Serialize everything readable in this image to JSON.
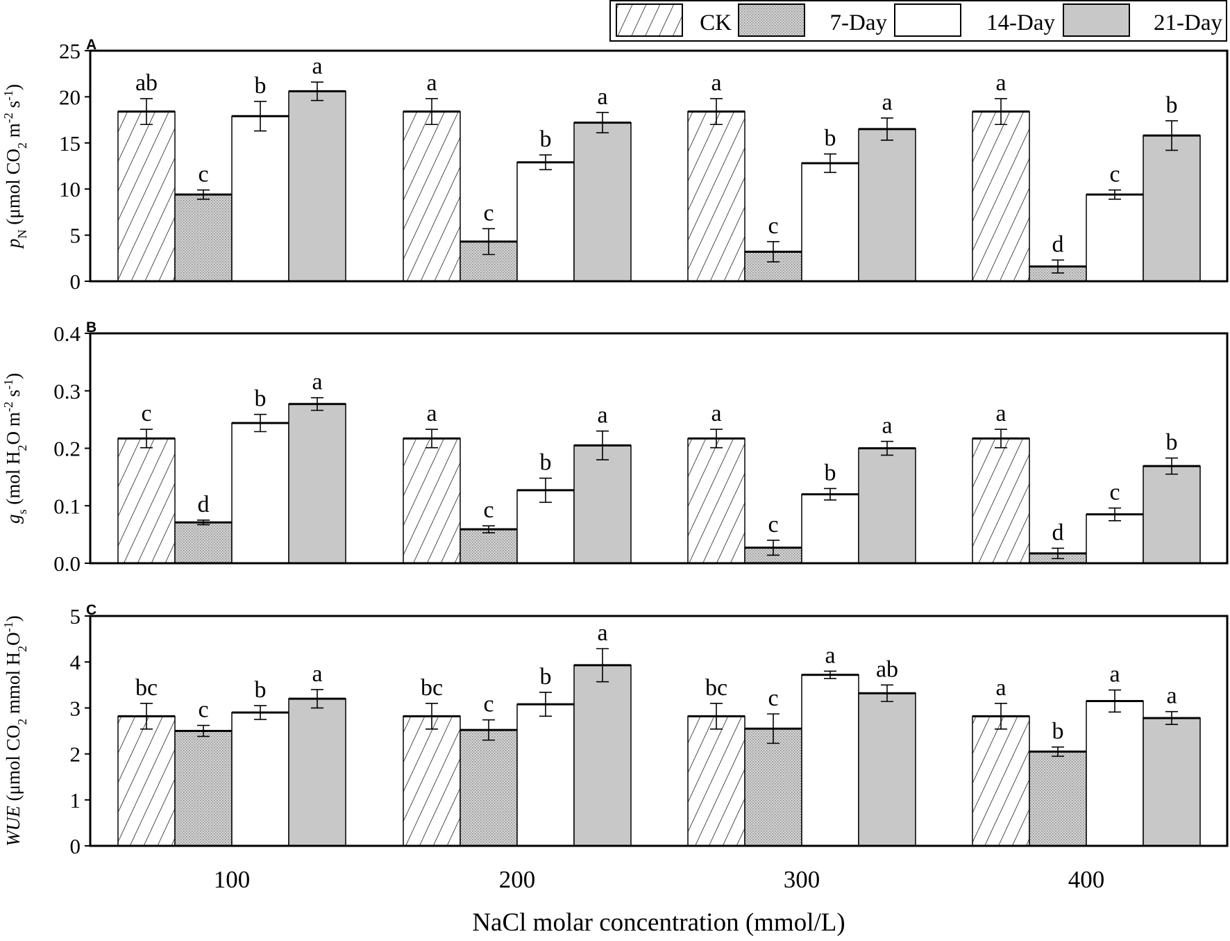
{
  "chart_data": {
    "type": "bar",
    "xlabel": "NaCl molar concentration (mmol/L)",
    "categories": [
      "100",
      "200",
      "300",
      "400"
    ],
    "legend": {
      "placement": "top-right",
      "entries": [
        {
          "name": "CK",
          "fill": "hatch"
        },
        {
          "name": "7-Day",
          "fill": "dots"
        },
        {
          "name": "14-Day",
          "fill": "#ffffff"
        },
        {
          "name": "21-Day",
          "fill": "#c8c8c8"
        }
      ]
    },
    "panels": [
      {
        "label": "A",
        "ylabel": [
          {
            "t": "p",
            "i": true
          },
          {
            "t": "N",
            "sub": true
          },
          {
            "t": " (μmol CO"
          },
          {
            "t": "2",
            "sub": true
          },
          {
            "t": " m"
          },
          {
            "t": "-2",
            "sup": true
          },
          {
            "t": " s"
          },
          {
            "t": "-1",
            "sup": true
          },
          {
            "t": ")"
          }
        ],
        "ylim": [
          0,
          25
        ],
        "yticks": [
          "0",
          "5",
          "10",
          "15",
          "20",
          "25"
        ],
        "series": [
          {
            "name": "CK",
            "values": [
              18.4,
              18.4,
              18.4,
              18.4
            ],
            "errors": [
              1.4,
              1.4,
              1.4,
              1.4
            ],
            "letters": [
              "ab",
              "a",
              "a",
              "a"
            ]
          },
          {
            "name": "7-Day",
            "values": [
              9.4,
              4.3,
              3.2,
              1.6
            ],
            "errors": [
              0.5,
              1.4,
              1.1,
              0.7
            ],
            "letters": [
              "c",
              "c",
              "c",
              "d"
            ]
          },
          {
            "name": "14-Day",
            "values": [
              17.9,
              12.9,
              12.8,
              9.4
            ],
            "errors": [
              1.6,
              0.8,
              1.0,
              0.5
            ],
            "letters": [
              "b",
              "b",
              "b",
              "c"
            ]
          },
          {
            "name": "21-Day",
            "values": [
              20.6,
              17.2,
              16.5,
              15.8
            ],
            "errors": [
              1.0,
              1.1,
              1.2,
              1.6
            ],
            "letters": [
              "a",
              "a",
              "a",
              "b"
            ]
          }
        ]
      },
      {
        "label": "B",
        "ylabel": [
          {
            "t": "g",
            "i": true
          },
          {
            "t": "s",
            "sub": true
          },
          {
            "t": " (mol H"
          },
          {
            "t": "2",
            "sub": true
          },
          {
            "t": "O m"
          },
          {
            "t": "-2",
            "sup": true
          },
          {
            "t": " s"
          },
          {
            "t": "-1",
            "sup": true
          },
          {
            "t": ")"
          }
        ],
        "ylim": [
          0,
          0.4
        ],
        "yticks": [
          "0.0",
          "0.1",
          "0.2",
          "0.3",
          "0.4"
        ],
        "series": [
          {
            "name": "CK",
            "values": [
              0.217,
              0.217,
              0.217,
              0.217
            ],
            "errors": [
              0.016,
              0.016,
              0.016,
              0.016
            ],
            "letters": [
              "c",
              "a",
              "a",
              "a"
            ]
          },
          {
            "name": "7-Day",
            "values": [
              0.071,
              0.059,
              0.027,
              0.017
            ],
            "errors": [
              0.004,
              0.006,
              0.013,
              0.009
            ],
            "letters": [
              "d",
              "c",
              "c",
              "d"
            ]
          },
          {
            "name": "14-Day",
            "values": [
              0.244,
              0.127,
              0.12,
              0.085
            ],
            "errors": [
              0.015,
              0.021,
              0.01,
              0.011
            ],
            "letters": [
              "b",
              "b",
              "b",
              "c"
            ]
          },
          {
            "name": "21-Day",
            "values": [
              0.277,
              0.205,
              0.2,
              0.169
            ],
            "errors": [
              0.011,
              0.025,
              0.012,
              0.014
            ],
            "letters": [
              "a",
              "a",
              "a",
              "b"
            ]
          }
        ]
      },
      {
        "label": "C",
        "ylabel": [
          {
            "t": "WUE",
            "i": true
          },
          {
            "t": "  (μmol CO"
          },
          {
            "t": "2",
            "sub": true
          },
          {
            "t": " mmol H"
          },
          {
            "t": "2",
            "sub": true
          },
          {
            "t": "O"
          },
          {
            "t": "-1",
            "sup": true
          },
          {
            "t": ")"
          }
        ],
        "ylim": [
          0,
          5
        ],
        "yticks": [
          "0",
          "1",
          "2",
          "3",
          "4",
          "5"
        ],
        "series": [
          {
            "name": "CK",
            "values": [
              2.82,
              2.82,
              2.82,
              2.82
            ],
            "errors": [
              0.28,
              0.28,
              0.28,
              0.28
            ],
            "letters": [
              "bc",
              "bc",
              "bc",
              "a"
            ]
          },
          {
            "name": "7-Day",
            "values": [
              2.5,
              2.52,
              2.55,
              2.05
            ],
            "errors": [
              0.12,
              0.22,
              0.32,
              0.1
            ],
            "letters": [
              "c",
              "c",
              "c",
              "b"
            ]
          },
          {
            "name": "14-Day",
            "values": [
              2.9,
              3.08,
              3.72,
              3.15
            ],
            "errors": [
              0.15,
              0.26,
              0.08,
              0.24
            ],
            "letters": [
              "b",
              "b",
              "a",
              "a"
            ]
          },
          {
            "name": "21-Day",
            "values": [
              3.2,
              3.93,
              3.32,
              2.78
            ],
            "errors": [
              0.2,
              0.36,
              0.18,
              0.14
            ],
            "letters": [
              "a",
              "a",
              "ab",
              "a"
            ]
          }
        ]
      }
    ]
  }
}
